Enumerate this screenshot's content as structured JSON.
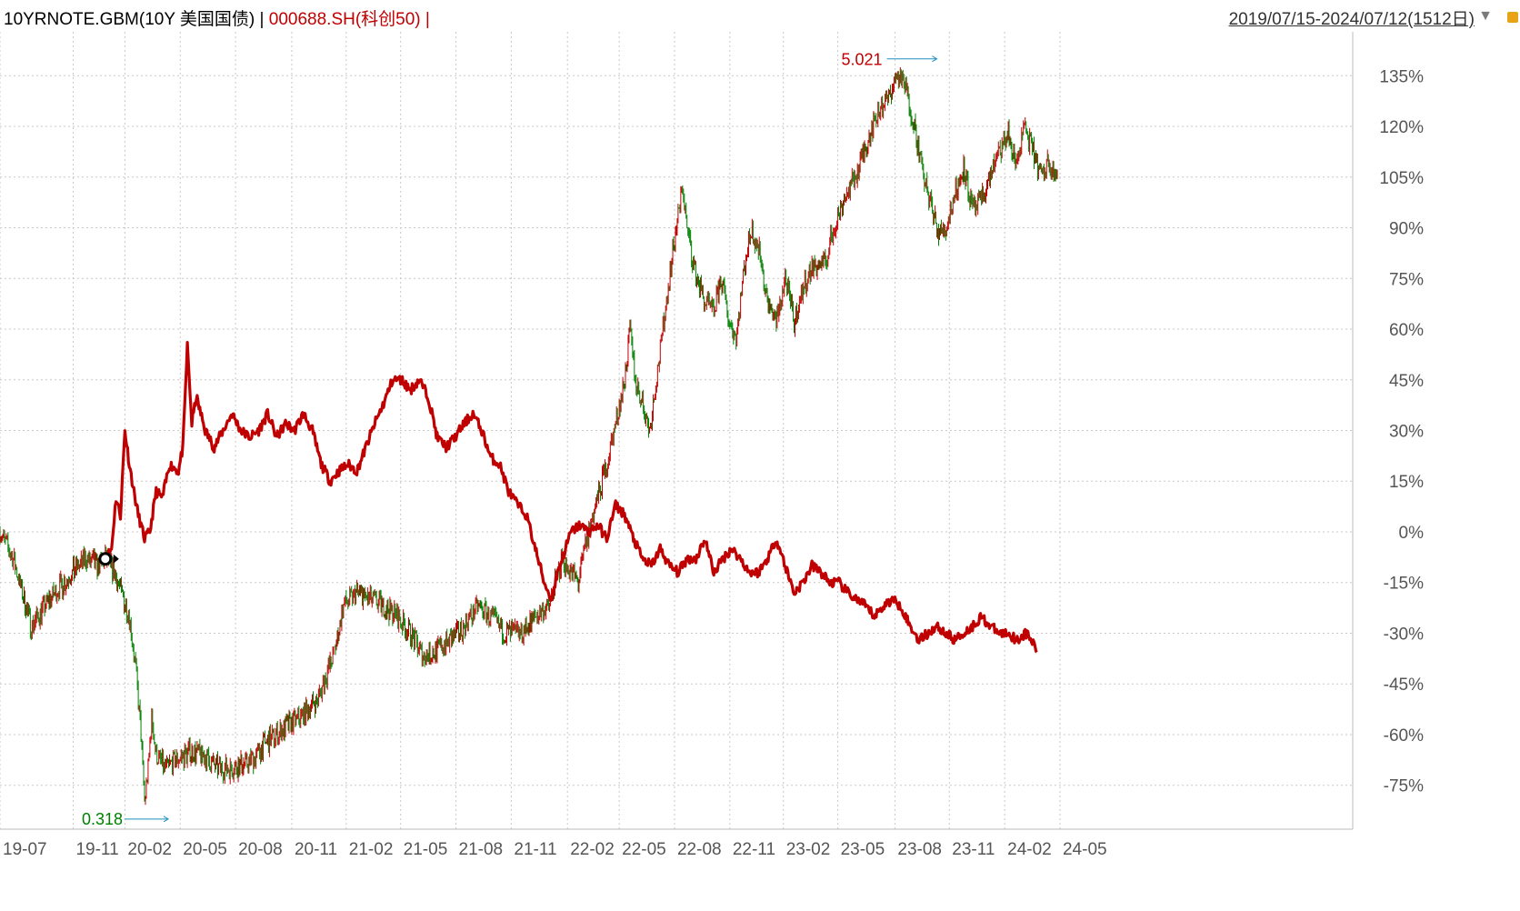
{
  "header": {
    "series1_label": "10YRNOTE.GBM(10Y 美国国债)",
    "separator": "|",
    "series2_label": "000688.SH(科创50)",
    "series2_sep": "|",
    "date_range": "2019/07/15-2024/07/12(1512日)",
    "dropdown_icon": "triangle-down-icon"
  },
  "colors": {
    "up": "#c00000",
    "down": "#008000",
    "line2": "#c00000",
    "grid": "#c8c8c8",
    "axis_text": "#555555"
  },
  "chart_data": {
    "type": "line",
    "title": "10YRNOTE.GBM(10Y 美国国债) | 000688.SH(科创50)",
    "y_axis_format": "percent",
    "ylim": [
      -88,
      148
    ],
    "y_ticks": [
      "135%",
      "120%",
      "105%",
      "90%",
      "75%",
      "60%",
      "45%",
      "30%",
      "15%",
      "0%",
      "-15%",
      "-30%",
      "-45%",
      "-60%",
      "-75%"
    ],
    "y_tick_values": [
      135,
      120,
      105,
      90,
      75,
      60,
      45,
      30,
      15,
      0,
      -15,
      -30,
      -45,
      -60,
      -75
    ],
    "x_ticks": [
      "19-07",
      "19-11",
      "20-02",
      "20-05",
      "20-08",
      "20-11",
      "21-02",
      "21-05",
      "21-08",
      "21-11",
      "22-02",
      "22-05",
      "22-08",
      "22-11",
      "23-02",
      "23-05",
      "23-08",
      "23-11",
      "24-02",
      "24-05"
    ],
    "x_tick_index": [
      0,
      82,
      140,
      202,
      264,
      327,
      388,
      449,
      511,
      573,
      636,
      694,
      756,
      818,
      878,
      939,
      1003,
      1064,
      1126,
      1188
    ],
    "x_count": 1512,
    "annotations": [
      {
        "label": "5.021",
        "index": 1050,
        "value": 140,
        "color": "#c00000"
      },
      {
        "label": "0.318",
        "index": 160,
        "value": -85,
        "color": "#008000"
      }
    ],
    "series": [
      {
        "name": "10YRNOTE.GBM(10Y 美国国债)",
        "style": "candle",
        "points": [
          [
            0,
            0
          ],
          [
            15,
            -8
          ],
          [
            35,
            -28
          ],
          [
            55,
            -20
          ],
          [
            75,
            -14
          ],
          [
            95,
            -8
          ],
          [
            110,
            -10
          ],
          [
            118,
            -8
          ],
          [
            128,
            -12
          ],
          [
            145,
            -25
          ],
          [
            152,
            -40
          ],
          [
            158,
            -60
          ],
          [
            162,
            -80
          ],
          [
            166,
            -70
          ],
          [
            170,
            -55
          ],
          [
            175,
            -66
          ],
          [
            185,
            -70
          ],
          [
            200,
            -67
          ],
          [
            215,
            -65
          ],
          [
            225,
            -66
          ],
          [
            235,
            -68
          ],
          [
            245,
            -70
          ],
          [
            260,
            -70
          ],
          [
            280,
            -68
          ],
          [
            300,
            -62
          ],
          [
            320,
            -58
          ],
          [
            340,
            -54
          ],
          [
            355,
            -50
          ],
          [
            365,
            -43
          ],
          [
            375,
            -35
          ],
          [
            385,
            -22
          ],
          [
            400,
            -18
          ],
          [
            415,
            -20
          ],
          [
            430,
            -22
          ],
          [
            445,
            -25
          ],
          [
            460,
            -30
          ],
          [
            475,
            -37
          ],
          [
            490,
            -35
          ],
          [
            505,
            -32
          ],
          [
            520,
            -28
          ],
          [
            535,
            -22
          ],
          [
            550,
            -25
          ],
          [
            565,
            -30
          ],
          [
            585,
            -30
          ],
          [
            600,
            -25
          ],
          [
            615,
            -22
          ],
          [
            630,
            -8
          ],
          [
            640,
            -12
          ],
          [
            648,
            -15
          ],
          [
            655,
            -5
          ],
          [
            665,
            5
          ],
          [
            680,
            20
          ],
          [
            690,
            32
          ],
          [
            700,
            45
          ],
          [
            706,
            60
          ],
          [
            712,
            45
          ],
          [
            720,
            38
          ],
          [
            728,
            30
          ],
          [
            733,
            40
          ],
          [
            742,
            58
          ],
          [
            750,
            75
          ],
          [
            758,
            90
          ],
          [
            765,
            102
          ],
          [
            770,
            90
          ],
          [
            778,
            78
          ],
          [
            790,
            68
          ],
          [
            800,
            65
          ],
          [
            808,
            75
          ],
          [
            818,
            62
          ],
          [
            825,
            58
          ],
          [
            835,
            80
          ],
          [
            842,
            90
          ],
          [
            852,
            82
          ],
          [
            860,
            68
          ],
          [
            870,
            62
          ],
          [
            880,
            75
          ],
          [
            890,
            62
          ],
          [
            900,
            72
          ],
          [
            910,
            78
          ],
          [
            925,
            80
          ],
          [
            935,
            90
          ],
          [
            945,
            98
          ],
          [
            955,
            103
          ],
          [
            965,
            110
          ],
          [
            975,
            118
          ],
          [
            985,
            125
          ],
          [
            995,
            128
          ],
          [
            1005,
            135
          ],
          [
            1015,
            132
          ],
          [
            1025,
            120
          ],
          [
            1035,
            105
          ],
          [
            1045,
            95
          ],
          [
            1052,
            88
          ],
          [
            1060,
            90
          ],
          [
            1070,
            100
          ],
          [
            1080,
            108
          ],
          [
            1090,
            95
          ],
          [
            1100,
            98
          ],
          [
            1110,
            106
          ],
          [
            1120,
            112
          ],
          [
            1130,
            118
          ],
          [
            1138,
            108
          ],
          [
            1148,
            120
          ],
          [
            1158,
            112
          ],
          [
            1168,
            105
          ],
          [
            1175,
            110
          ],
          [
            1185,
            105
          ]
        ]
      },
      {
        "name": "000688.SH(科创50)",
        "style": "line",
        "points": [
          [
            118,
            -8
          ],
          [
            125,
            -5
          ],
          [
            130,
            10
          ],
          [
            135,
            5
          ],
          [
            140,
            30
          ],
          [
            145,
            20
          ],
          [
            150,
            12
          ],
          [
            155,
            5
          ],
          [
            162,
            -2
          ],
          [
            168,
            0
          ],
          [
            175,
            12
          ],
          [
            182,
            10
          ],
          [
            190,
            20
          ],
          [
            200,
            18
          ],
          [
            205,
            25
          ],
          [
            210,
            55
          ],
          [
            215,
            32
          ],
          [
            220,
            40
          ],
          [
            230,
            30
          ],
          [
            240,
            25
          ],
          [
            250,
            30
          ],
          [
            260,
            35
          ],
          [
            270,
            30
          ],
          [
            280,
            28
          ],
          [
            290,
            30
          ],
          [
            300,
            35
          ],
          [
            310,
            28
          ],
          [
            320,
            32
          ],
          [
            330,
            30
          ],
          [
            340,
            35
          ],
          [
            350,
            30
          ],
          [
            360,
            20
          ],
          [
            370,
            15
          ],
          [
            380,
            18
          ],
          [
            390,
            20
          ],
          [
            400,
            18
          ],
          [
            410,
            25
          ],
          [
            420,
            32
          ],
          [
            430,
            38
          ],
          [
            440,
            45
          ],
          [
            450,
            45
          ],
          [
            460,
            42
          ],
          [
            470,
            45
          ],
          [
            480,
            40
          ],
          [
            490,
            28
          ],
          [
            500,
            25
          ],
          [
            510,
            28
          ],
          [
            520,
            32
          ],
          [
            530,
            35
          ],
          [
            540,
            30
          ],
          [
            550,
            22
          ],
          [
            560,
            20
          ],
          [
            570,
            12
          ],
          [
            580,
            8
          ],
          [
            590,
            5
          ],
          [
            600,
            -5
          ],
          [
            610,
            -15
          ],
          [
            618,
            -20
          ],
          [
            625,
            -12
          ],
          [
            630,
            -8
          ],
          [
            640,
            0
          ],
          [
            650,
            2
          ],
          [
            660,
            0
          ],
          [
            670,
            2
          ],
          [
            680,
            -2
          ],
          [
            690,
            8
          ],
          [
            700,
            5
          ],
          [
            710,
            -2
          ],
          [
            720,
            -8
          ],
          [
            730,
            -10
          ],
          [
            740,
            -5
          ],
          [
            750,
            -10
          ],
          [
            760,
            -12
          ],
          [
            770,
            -8
          ],
          [
            780,
            -8
          ],
          [
            790,
            -2
          ],
          [
            800,
            -12
          ],
          [
            810,
            -8
          ],
          [
            820,
            -5
          ],
          [
            830,
            -8
          ],
          [
            840,
            -12
          ],
          [
            850,
            -12
          ],
          [
            860,
            -8
          ],
          [
            870,
            -2
          ],
          [
            880,
            -10
          ],
          [
            890,
            -18
          ],
          [
            900,
            -15
          ],
          [
            910,
            -10
          ],
          [
            920,
            -12
          ],
          [
            930,
            -15
          ],
          [
            940,
            -15
          ],
          [
            950,
            -18
          ],
          [
            960,
            -20
          ],
          [
            970,
            -22
          ],
          [
            980,
            -25
          ],
          [
            990,
            -22
          ],
          [
            1000,
            -20
          ],
          [
            1010,
            -22
          ],
          [
            1020,
            -28
          ],
          [
            1030,
            -32
          ],
          [
            1040,
            -30
          ],
          [
            1050,
            -28
          ],
          [
            1060,
            -30
          ],
          [
            1070,
            -32
          ],
          [
            1080,
            -30
          ],
          [
            1090,
            -28
          ],
          [
            1100,
            -25
          ],
          [
            1110,
            -28
          ],
          [
            1120,
            -30
          ],
          [
            1130,
            -30
          ],
          [
            1140,
            -32
          ],
          [
            1150,
            -30
          ],
          [
            1158,
            -33
          ],
          [
            1162,
            -35
          ]
        ]
      }
    ]
  }
}
